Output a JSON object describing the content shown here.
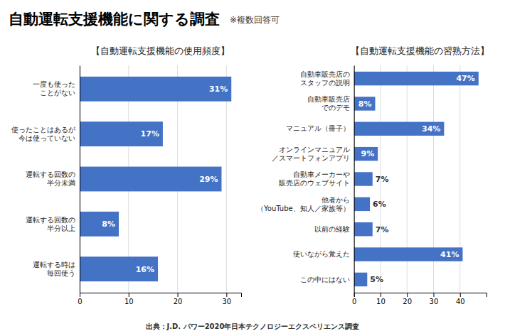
{
  "title": "自動運転支援機能に関する調査",
  "subtitle": "※複数回答可",
  "footer": "出典：J.D. パワー2020年日本テクノロジーエクスペリエンス調査",
  "chart_data": [
    {
      "type": "bar",
      "orientation": "horizontal",
      "title": "【自動運転支援機能の使用頻度】",
      "categories": [
        "運転する時は\n毎回使う",
        "運転する回数の\n半分以上",
        "運転する回数の\n半分未満",
        "使ったことはあるが\n今は使っていない",
        "一度も使った\nことがない"
      ],
      "values": [
        16,
        8,
        29,
        17,
        31
      ],
      "value_labels": [
        "16%",
        "8%",
        "29%",
        "17%",
        "31%"
      ],
      "data_labels": true,
      "color": "#4472C4",
      "xlim": [
        0,
        33
      ],
      "xticks": [
        0,
        10,
        20,
        30
      ],
      "grid": true
    },
    {
      "type": "bar",
      "orientation": "horizontal",
      "title": "【自動運転支援機能の習熟方法】",
      "categories": [
        "この中にはない",
        "使いながら覚えた",
        "以前の経験",
        "他者から\n（YouTube、知人／家族等）",
        "自動車メーカーや\n販売店のウェブサイト",
        "オンラインマニュアル\n／スマートフォンアプリ",
        "マニュアル（冊子）",
        "自動車販売店\nでのデモ",
        "自動車販売店の\nスタッフの説明"
      ],
      "values": [
        5,
        41,
        7,
        6,
        7,
        9,
        34,
        8,
        47
      ],
      "value_labels": [
        "5%",
        "41%",
        "7%",
        "6%",
        "7%",
        "9%",
        "34%",
        "8%",
        "47%"
      ],
      "data_labels": true,
      "color": "#4472C4",
      "xlim": [
        0,
        50
      ],
      "xticks": [
        0,
        10,
        20,
        30,
        40
      ],
      "grid": true
    }
  ]
}
